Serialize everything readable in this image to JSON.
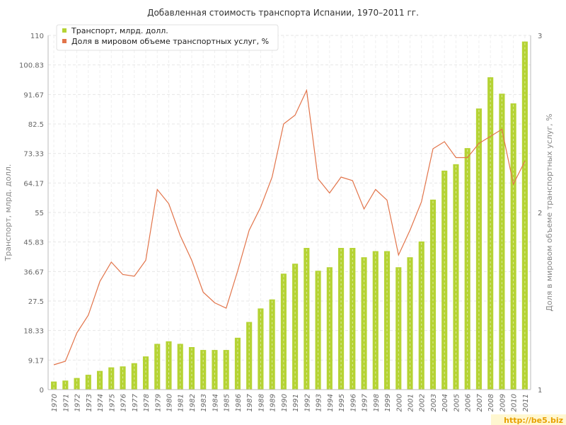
{
  "chart_data": {
    "type": "bar",
    "title": "Добавленная стоимость транспорта Испании, 1970–2011 гг.",
    "ylabel": "Транспорт, млрд. долл.",
    "y2label": "Доля в мировом объеме транспортных услуг, %",
    "ylim": [
      0,
      110
    ],
    "y2lim": [
      1,
      3
    ],
    "yticks": [
      "0",
      "9.17",
      "18.33",
      "27.5",
      "36.67",
      "45.83",
      "55",
      "64.17",
      "73.33",
      "82.5",
      "91.67",
      "100.83",
      "110"
    ],
    "y2ticks": [
      "1",
      "2",
      "3"
    ],
    "grid": true,
    "legend_position": "top-left",
    "categories": [
      "1970",
      "1971",
      "1972",
      "1973",
      "1974",
      "1975",
      "1976",
      "1977",
      "1978",
      "1979",
      "1980",
      "1981",
      "1982",
      "1983",
      "1984",
      "1985",
      "1986",
      "1987",
      "1988",
      "1989",
      "1990",
      "1991",
      "1992",
      "1993",
      "1994",
      "1995",
      "1996",
      "1997",
      "1998",
      "1999",
      "2000",
      "2001",
      "2002",
      "2003",
      "2004",
      "2005",
      "2006",
      "2007",
      "2008",
      "2009",
      "2010",
      "2011"
    ],
    "series": [
      {
        "name": "Транспорт, млрд. долл.",
        "type": "bar",
        "axis": "left",
        "color": "#b5d334",
        "values": [
          2.5,
          2.8,
          3.6,
          4.6,
          5.8,
          6.9,
          7.2,
          8.2,
          10.3,
          14.2,
          15.0,
          14.2,
          13.2,
          12.3,
          12.3,
          12.3,
          16.1,
          21.0,
          25.2,
          28.0,
          36.0,
          39.1,
          44.0,
          36.9,
          38.0,
          44.0,
          44.0,
          41.1,
          43.0,
          43.0,
          38.0,
          41.1,
          46.0,
          59.0,
          68.0,
          70.0,
          75.0,
          87.3,
          97.0,
          91.9,
          88.9,
          108.1
        ]
      },
      {
        "name": "Доля в мировом объеме транспортных услуг, %",
        "type": "line",
        "axis": "right",
        "color": "#e2744a",
        "values": [
          1.14,
          1.16,
          1.32,
          1.42,
          1.61,
          1.72,
          1.65,
          1.64,
          1.73,
          2.13,
          2.05,
          1.87,
          1.73,
          1.55,
          1.49,
          1.46,
          1.67,
          1.9,
          2.03,
          2.2,
          2.5,
          2.55,
          2.69,
          2.19,
          2.11,
          2.2,
          2.18,
          2.02,
          2.13,
          2.07,
          1.76,
          1.9,
          2.06,
          2.36,
          2.4,
          2.31,
          2.31,
          2.39,
          2.43,
          2.47,
          2.16,
          2.29
        ]
      }
    ]
  },
  "watermark": "http://be5.biz"
}
